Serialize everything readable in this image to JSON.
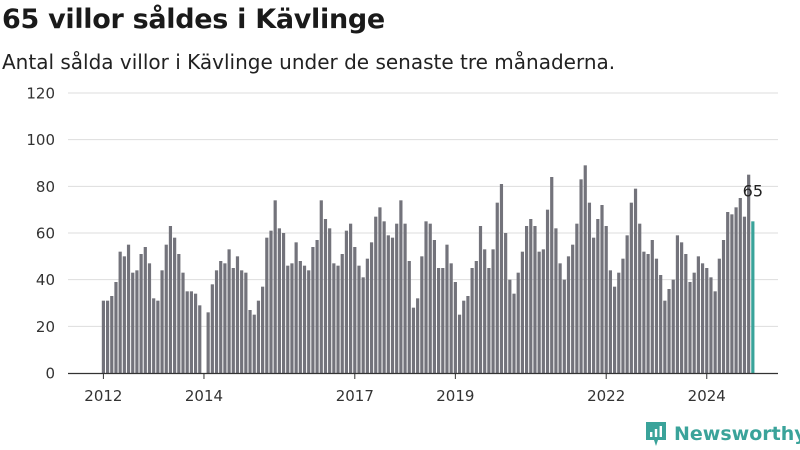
{
  "header": {
    "title": "65 villor såldes i Kävlinge",
    "subtitle": "Antal sålda villor i Kävlinge under de senaste tre månaderna."
  },
  "brand": {
    "name": "Newsworthy",
    "color": "#3aa39a",
    "icon": "bar-chart-logo-icon"
  },
  "chart_data": {
    "type": "bar",
    "title": "65 villor såldes i Kävlinge",
    "subtitle": "Antal sålda villor i Kävlinge under de senaste tre månaderna.",
    "xlabel": "",
    "ylabel": "",
    "ylim": [
      0,
      120
    ],
    "yticks": [
      0,
      20,
      40,
      60,
      80,
      100,
      120
    ],
    "xticks": [
      {
        "label": "2012",
        "index": 0
      },
      {
        "label": "2014",
        "index": 24
      },
      {
        "label": "2017",
        "index": 60
      },
      {
        "label": "2019",
        "index": 84
      },
      {
        "label": "2022",
        "index": 120
      },
      {
        "label": "2024",
        "index": 144
      }
    ],
    "grid": "horizontal",
    "bar_color": "#73737b",
    "highlight_color": "#3aa39a",
    "highlight_label": "65",
    "values": [
      31,
      31,
      33,
      39,
      52,
      50,
      55,
      43,
      44,
      51,
      54,
      47,
      32,
      31,
      44,
      55,
      63,
      58,
      51,
      43,
      35,
      35,
      34,
      29,
      0,
      26,
      38,
      44,
      48,
      47,
      53,
      45,
      50,
      44,
      43,
      27,
      25,
      31,
      37,
      58,
      61,
      74,
      62,
      60,
      46,
      47,
      56,
      48,
      46,
      44,
      54,
      57,
      74,
      66,
      62,
      47,
      46,
      51,
      61,
      64,
      54,
      46,
      41,
      49,
      56,
      67,
      71,
      65,
      59,
      58,
      64,
      74,
      64,
      48,
      28,
      32,
      50,
      65,
      64,
      57,
      45,
      45,
      55,
      47,
      39,
      25,
      31,
      33,
      45,
      48,
      63,
      53,
      45,
      53,
      73,
      81,
      60,
      40,
      34,
      43,
      52,
      63,
      66,
      63,
      52,
      53,
      70,
      84,
      62,
      47,
      40,
      50,
      55,
      64,
      83,
      89,
      73,
      58,
      66,
      72,
      63,
      44,
      37,
      43,
      49,
      59,
      73,
      79,
      64,
      52,
      51,
      57,
      49,
      42,
      31,
      36,
      40,
      59,
      56,
      51,
      39,
      43,
      50,
      47,
      45,
      41,
      35,
      49,
      57,
      69,
      68,
      71,
      75,
      67,
      85,
      65
    ]
  }
}
